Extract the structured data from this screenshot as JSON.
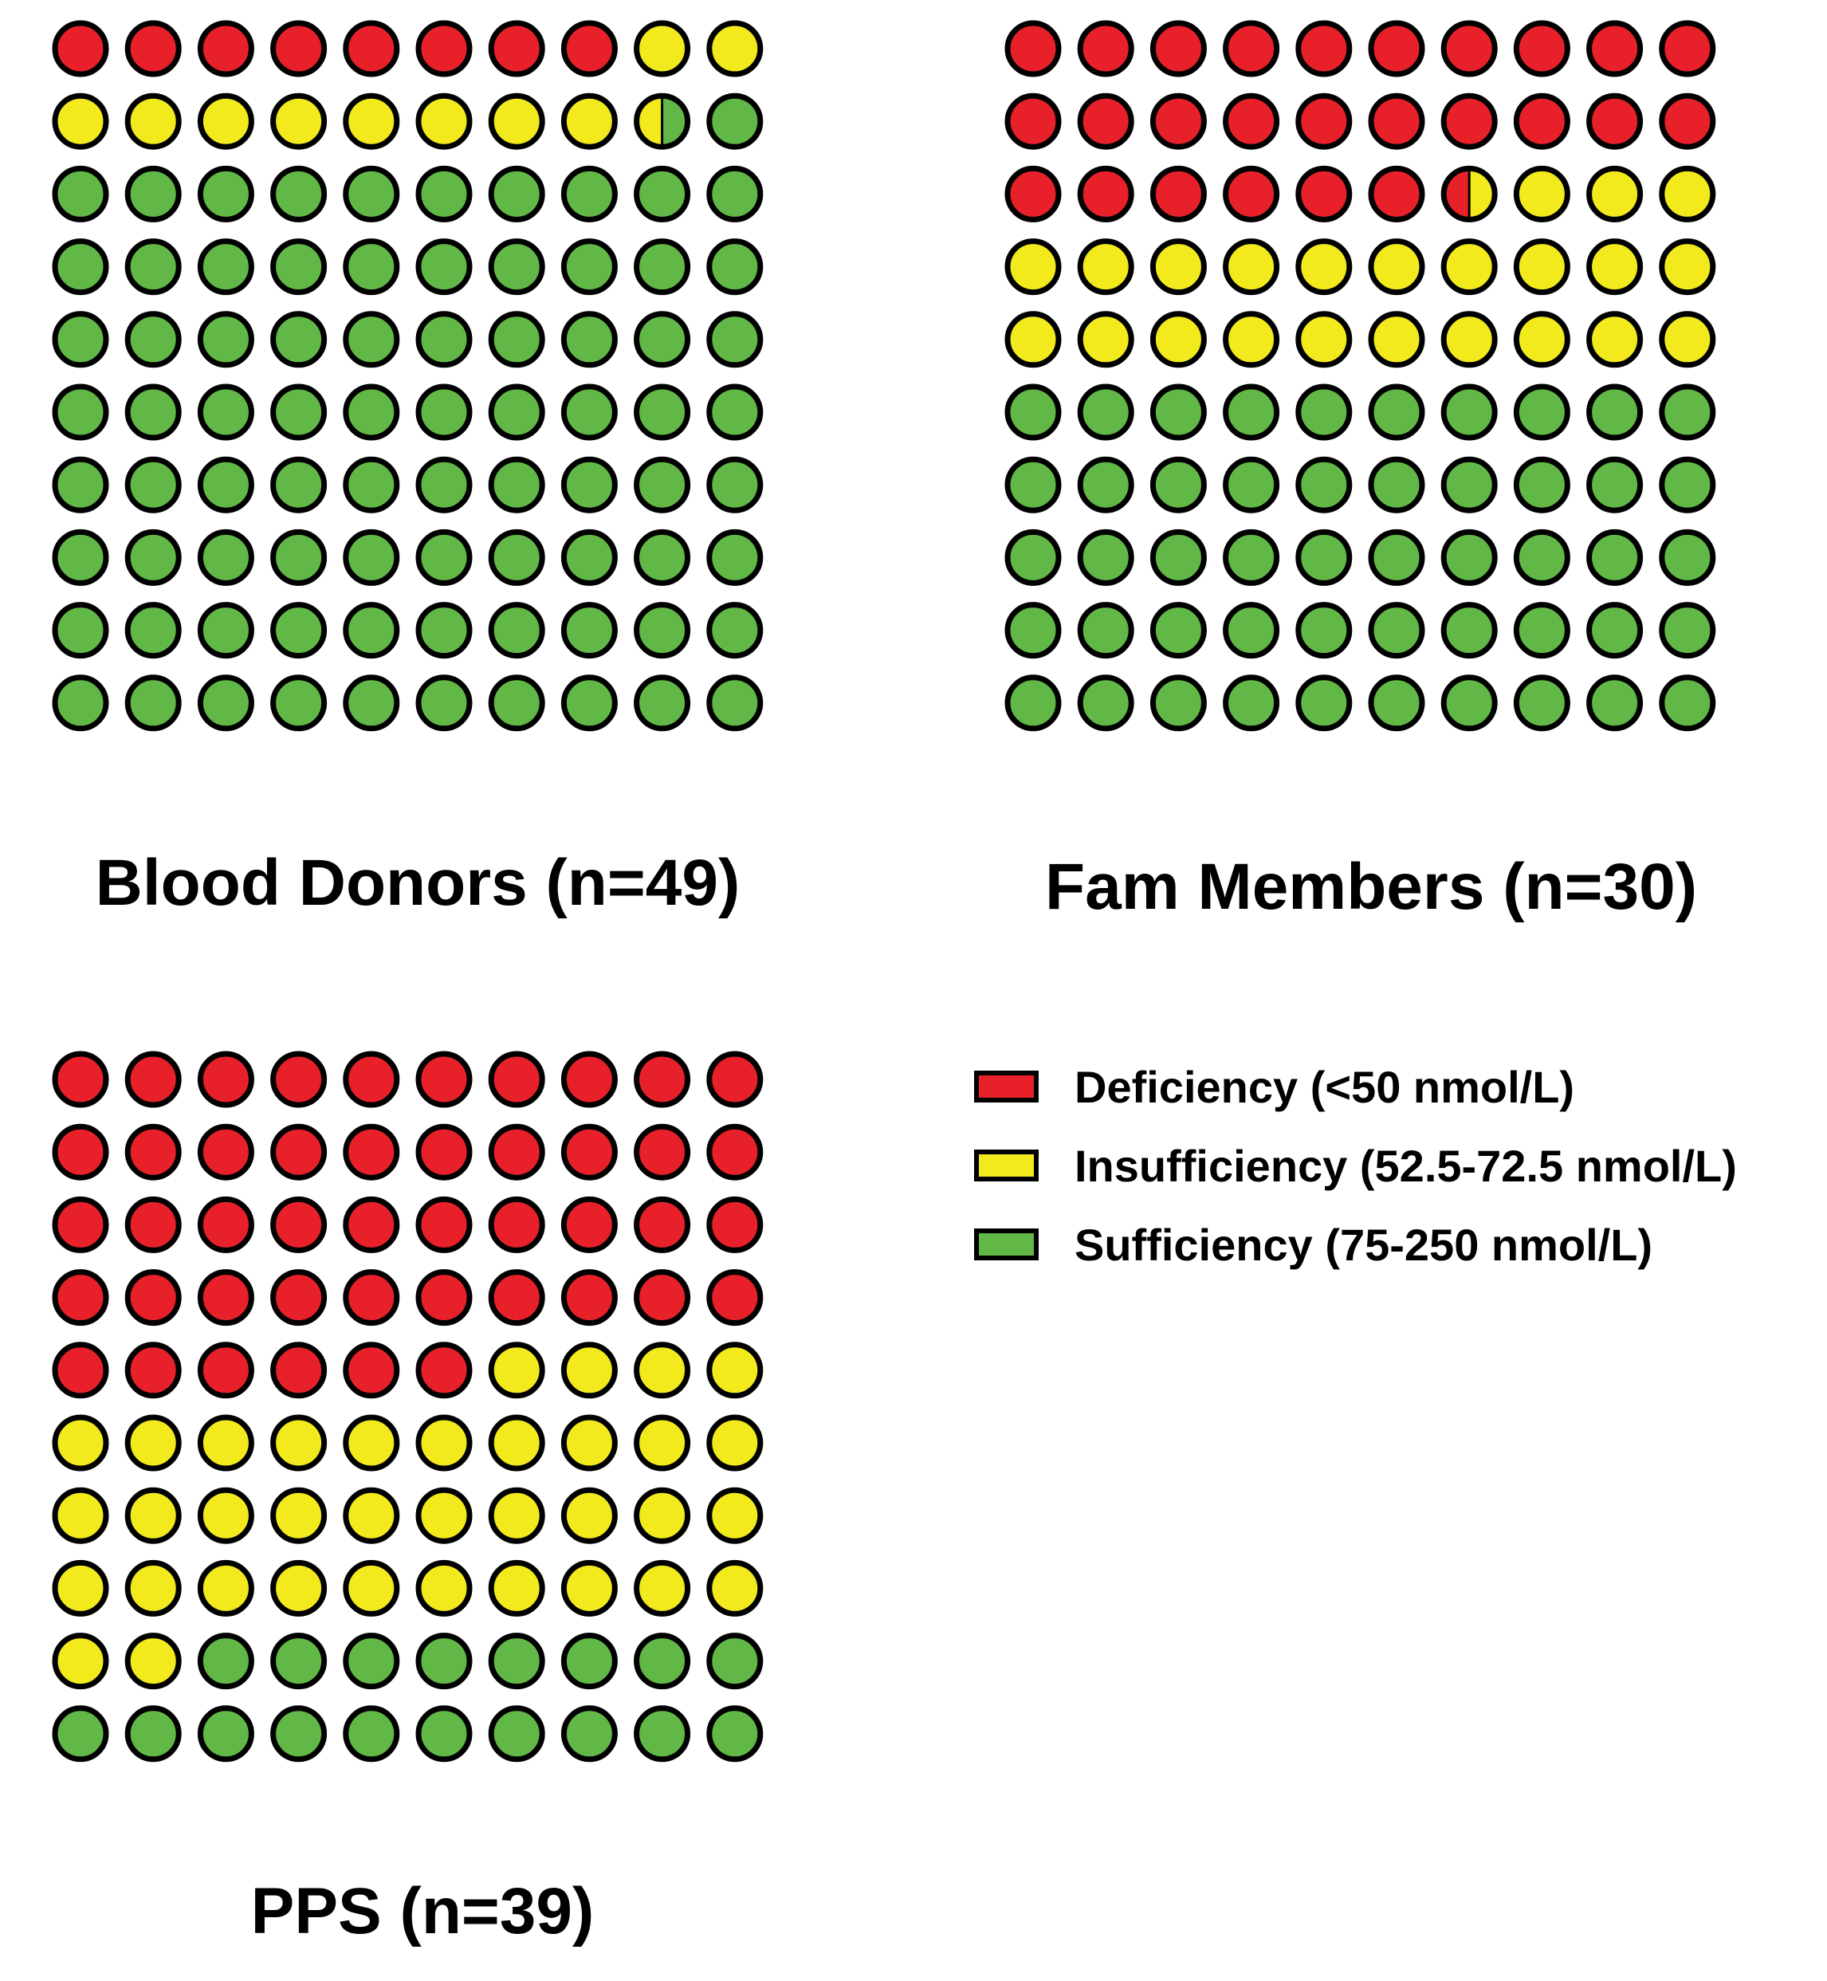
{
  "colors": {
    "deficiency": "#e8202a",
    "insufficiency": "#f2ea1d",
    "sufficiency": "#62b846",
    "outline": "#000000"
  },
  "chart_data": {
    "type": "waffle",
    "grid": {
      "rows": 10,
      "cols": 10
    },
    "unit": "percent",
    "categories": [
      "Deficiency",
      "Insufficiency",
      "Sufficiency"
    ],
    "panels": [
      {
        "id": "blood-donors",
        "title": "Blood Donors (n=49)",
        "values": {
          "deficiency": 8,
          "insufficiency": 10.5,
          "sufficiency": 81.5
        }
      },
      {
        "id": "fam-members",
        "title": "Fam Members (n=30)",
        "values": {
          "deficiency": 26.5,
          "insufficiency": 23.5,
          "sufficiency": 50
        }
      },
      {
        "id": "pps",
        "title": "PPS (n=39)",
        "values": {
          "deficiency": 46,
          "insufficiency": 36,
          "sufficiency": 18
        }
      }
    ],
    "legend": {
      "placement": "right",
      "entries": [
        {
          "key": "deficiency",
          "label": "Deficiency (<50 nmol/L)"
        },
        {
          "key": "insufficiency",
          "label": "Insufficiency (52.5-72.5 nmol/L)"
        },
        {
          "key": "sufficiency",
          "label": "Sufficiency (75-250 nmol/L)"
        }
      ]
    }
  }
}
